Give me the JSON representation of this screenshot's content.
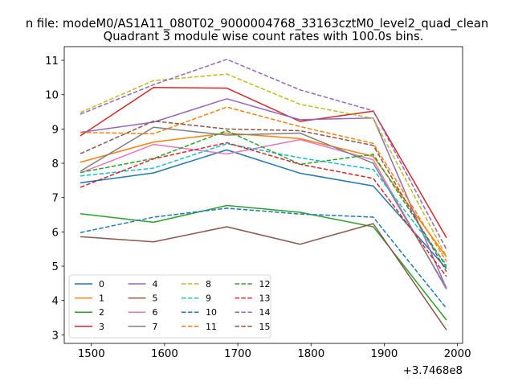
{
  "chart_data": {
    "type": "line",
    "suptitle": "n file: modeM0/AS1A11_080T02_9000004768_33163cztM0_level2_quad_clean",
    "title": "Quadrant 3 module wise count rates with 100.0s bins.",
    "xlabel": "",
    "ylabel": "",
    "x_offset_label": "+3.7468e8",
    "x": [
      1485,
      1585,
      1685,
      1785,
      1885,
      1985
    ],
    "xlim": [
      1463,
      2007
    ],
    "ylim": [
      2.75,
      11.4
    ],
    "x_ticks": [
      1500,
      1600,
      1700,
      1800,
      1900,
      2000
    ],
    "x_tick_labels": [
      "1500",
      "1600",
      "1700",
      "1800",
      "1900",
      "2000"
    ],
    "y_ticks": [
      3,
      4,
      5,
      6,
      7,
      8,
      9,
      10,
      11
    ],
    "y_tick_labels": [
      "3",
      "4",
      "5",
      "6",
      "7",
      "8",
      "9",
      "10",
      "11"
    ],
    "grid": false,
    "legend_position": "lower-left",
    "legend_columns": 4,
    "series": [
      {
        "name": "0",
        "color": "#1f77b4",
        "dashed": false,
        "values": [
          7.43,
          7.72,
          8.39,
          7.71,
          7.34,
          4.93
        ]
      },
      {
        "name": "1",
        "color": "#ff7f0e",
        "dashed": false,
        "values": [
          8.03,
          8.62,
          8.88,
          8.72,
          8.2,
          5.27
        ]
      },
      {
        "name": "2",
        "color": "#2ca02c",
        "dashed": false,
        "values": [
          6.53,
          6.28,
          6.77,
          6.57,
          6.15,
          3.43
        ]
      },
      {
        "name": "3",
        "color": "#d62728",
        "dashed": false,
        "values": [
          8.8,
          10.21,
          10.19,
          9.22,
          9.52,
          5.83
        ]
      },
      {
        "name": "4",
        "color": "#9467bd",
        "dashed": false,
        "values": [
          8.9,
          9.2,
          9.88,
          9.27,
          9.32,
          4.35
        ]
      },
      {
        "name": "5",
        "color": "#8c564b",
        "dashed": false,
        "values": [
          5.86,
          5.71,
          6.15,
          5.64,
          6.24,
          3.14
        ]
      },
      {
        "name": "6",
        "color": "#e377c2",
        "dashed": false,
        "values": [
          7.72,
          8.55,
          8.27,
          8.69,
          8.1,
          4.32
        ]
      },
      {
        "name": "7",
        "color": "#7f7f7f",
        "dashed": false,
        "values": [
          7.77,
          9.05,
          8.82,
          8.88,
          8.0,
          4.36
        ]
      },
      {
        "name": "8",
        "color": "#bcbd22",
        "dashed": true,
        "values": [
          9.48,
          10.41,
          10.6,
          9.72,
          9.31,
          5.28
        ]
      },
      {
        "name": "9",
        "color": "#17becf",
        "dashed": true,
        "values": [
          7.63,
          7.86,
          8.57,
          8.16,
          7.82,
          5.04
        ]
      },
      {
        "name": "10",
        "color": "#1f77b4",
        "dashed": true,
        "values": [
          5.98,
          6.43,
          6.69,
          6.52,
          6.43,
          3.77
        ]
      },
      {
        "name": "11",
        "color": "#ff7f0e",
        "dashed": true,
        "values": [
          8.9,
          8.86,
          9.64,
          9.07,
          8.58,
          5.14
        ]
      },
      {
        "name": "12",
        "color": "#2ca02c",
        "dashed": true,
        "values": [
          7.73,
          8.14,
          8.95,
          7.97,
          8.26,
          4.98
        ]
      },
      {
        "name": "13",
        "color": "#d62728",
        "dashed": true,
        "values": [
          7.3,
          8.13,
          8.6,
          7.97,
          7.56,
          4.7
        ]
      },
      {
        "name": "14",
        "color": "#9467bd",
        "dashed": true,
        "values": [
          9.43,
          10.29,
          11.03,
          10.14,
          9.53,
          5.49
        ]
      },
      {
        "name": "15",
        "color": "#8c564b",
        "dashed": true,
        "values": [
          8.28,
          9.23,
          9.0,
          8.95,
          8.52,
          4.84
        ]
      }
    ]
  }
}
